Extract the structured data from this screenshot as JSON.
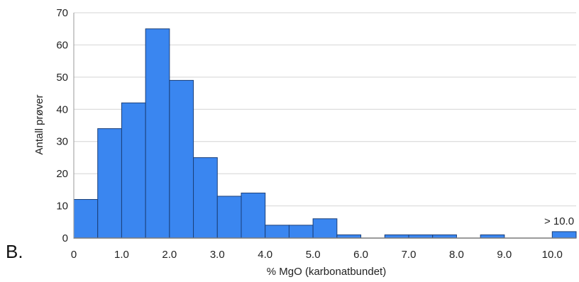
{
  "panel_label": "B.",
  "chart_data": {
    "type": "bar",
    "xlabel": "% MgO (karbonatbundet)",
    "ylabel": "Antall prøver",
    "xlim": [
      0,
      10.5
    ],
    "ylim": [
      0,
      70
    ],
    "yticks": [
      0,
      10,
      20,
      30,
      40,
      50,
      60,
      70
    ],
    "xticks": [
      "0",
      "1.0",
      "2.0",
      "3.0",
      "4.0",
      "5.0",
      "6.0",
      "7.0",
      "8.0",
      "9.0",
      "10.0"
    ],
    "bin_width": 0.5,
    "bins": [
      {
        "x0": 0.0,
        "x1": 0.5,
        "value": 12
      },
      {
        "x0": 0.5,
        "x1": 1.0,
        "value": 34
      },
      {
        "x0": 1.0,
        "x1": 1.5,
        "value": 42
      },
      {
        "x0": 1.5,
        "x1": 2.0,
        "value": 65
      },
      {
        "x0": 2.0,
        "x1": 2.5,
        "value": 49
      },
      {
        "x0": 2.5,
        "x1": 3.0,
        "value": 25
      },
      {
        "x0": 3.0,
        "x1": 3.5,
        "value": 13
      },
      {
        "x0": 3.5,
        "x1": 4.0,
        "value": 14
      },
      {
        "x0": 4.0,
        "x1": 4.5,
        "value": 4
      },
      {
        "x0": 4.5,
        "x1": 5.0,
        "value": 4
      },
      {
        "x0": 5.0,
        "x1": 5.5,
        "value": 6
      },
      {
        "x0": 5.5,
        "x1": 6.0,
        "value": 1
      },
      {
        "x0": 6.0,
        "x1": 6.5,
        "value": 0
      },
      {
        "x0": 6.5,
        "x1": 7.0,
        "value": 1
      },
      {
        "x0": 7.0,
        "x1": 7.5,
        "value": 1
      },
      {
        "x0": 7.5,
        "x1": 8.0,
        "value": 1
      },
      {
        "x0": 8.0,
        "x1": 8.5,
        "value": 0
      },
      {
        "x0": 8.5,
        "x1": 9.0,
        "value": 1
      },
      {
        "x0": 9.0,
        "x1": 9.5,
        "value": 0
      },
      {
        "x0": 9.5,
        "x1": 10.0,
        "value": 0
      },
      {
        "x0": 10.0,
        "x1": 10.5,
        "value": 2
      }
    ],
    "annotation": "> 10.0",
    "bar_color": "#3a86f0",
    "bar_edge_color": "#1b3f78",
    "grid": true,
    "grid_color": "#d4d4d4"
  }
}
